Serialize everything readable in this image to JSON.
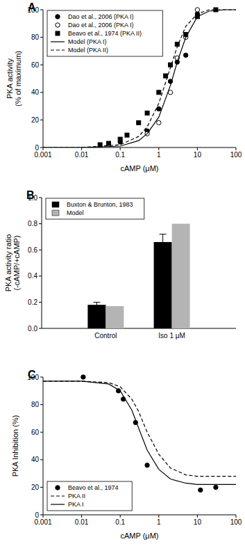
{
  "chart_data": [
    {
      "type": "line",
      "title": "A",
      "log": "x",
      "x_label": "cAMP (μM)",
      "y_label": [
        "PKA activity",
        "(% of maximum)"
      ],
      "xlim": [
        0.001,
        100
      ],
      "xticks": [
        0.001,
        0.01,
        0.1,
        1,
        10,
        100
      ],
      "ylim": [
        0,
        100
      ],
      "yticks": [
        0,
        20,
        40,
        60,
        80,
        100
      ],
      "legend": "upper left",
      "series": [
        {
          "name": "Dao et al., 2006 (PKA I)",
          "type": "scatter",
          "marker": "circle",
          "color": "#000000",
          "x": [
            0.1,
            0.5,
            1,
            2,
            3,
            5,
            10
          ],
          "values": [
            4,
            12,
            28,
            48,
            62,
            67,
            97
          ]
        },
        {
          "name": "Dao et al., 2006 (PKA I)",
          "type": "scatter",
          "marker": "open-circle",
          "color": "#000000",
          "x": [
            0.5,
            1,
            2,
            3,
            5,
            10
          ],
          "values": [
            10,
            18,
            40,
            65,
            80,
            100
          ]
        },
        {
          "name": "Beavo et al., 1974 (PKA II)",
          "type": "scatter",
          "marker": "square",
          "color": "#000000",
          "x": [
            0.03,
            0.05,
            0.1,
            0.15,
            0.3,
            0.5,
            1,
            1.5,
            2,
            3,
            5,
            10,
            30
          ],
          "values": [
            2,
            3,
            6,
            9,
            18,
            25,
            40,
            52,
            60,
            75,
            82,
            95,
            100
          ]
        },
        {
          "name": "Model (PKA I)",
          "type": "line",
          "line_style": "solid",
          "color": "#000000",
          "x": [
            0.001,
            0.01,
            0.1,
            0.3,
            0.5,
            1,
            2,
            3,
            5,
            10,
            20,
            50,
            100
          ],
          "values": [
            0,
            0,
            1,
            5,
            10,
            22,
            45,
            62,
            80,
            95,
            99,
            100,
            100
          ]
        },
        {
          "name": "Model (PKA II)",
          "type": "line",
          "line_style": "dashed",
          "color": "#000000",
          "x": [
            0.001,
            0.01,
            0.1,
            0.3,
            0.5,
            1,
            2,
            3,
            5,
            10,
            20,
            50,
            100
          ],
          "values": [
            0,
            0,
            2,
            8,
            15,
            32,
            58,
            73,
            88,
            97,
            100,
            100,
            100
          ]
        }
      ]
    },
    {
      "type": "bar",
      "title": "B",
      "y_label": [
        "PKA activity ratio",
        "(-cAMP/+cAMP)"
      ],
      "categories": [
        "Control",
        "Iso 1 μM"
      ],
      "ylim": [
        0,
        1
      ],
      "yticks": [
        {
          "value": 0,
          "label": "0.0"
        },
        0.2,
        0.4,
        0.6,
        0.8,
        {
          "value": 1,
          "label": "1.0"
        }
      ],
      "legend": "upper left",
      "series": [
        {
          "name": "Buxton & Brunton, 1983",
          "color": "#000000",
          "values": [
            0.18,
            0.66
          ],
          "errors": [
            0.02,
            0.06
          ]
        },
        {
          "name": "Model",
          "color": "#b4b4b4",
          "values": [
            0.17,
            0.8
          ]
        }
      ]
    },
    {
      "type": "line",
      "title": "C",
      "log": "x",
      "x_label": "cAMP (μM)",
      "y_label": [
        "PKA Inhibition (%)"
      ],
      "xlim": [
        0.001,
        100
      ],
      "xticks": [
        0.001,
        0.01,
        0.1,
        1,
        10,
        100
      ],
      "ylim": [
        0,
        100
      ],
      "yticks": [
        0,
        20,
        40,
        60,
        80,
        100
      ],
      "legend": "lower left",
      "series": [
        {
          "name": "Beavo et al., 1974",
          "type": "scatter",
          "marker": "circle",
          "color": "#000000",
          "x": [
            0.011,
            0.09,
            0.12,
            0.25,
            0.5,
            12,
            30
          ],
          "values": [
            100,
            90,
            84,
            67,
            36,
            18,
            20
          ]
        },
        {
          "name": "PKA II",
          "type": "line",
          "line_style": "dashed",
          "color": "#000000",
          "x": [
            0.001,
            0.01,
            0.05,
            0.1,
            0.2,
            0.3,
            0.5,
            1,
            2,
            5,
            10,
            100
          ],
          "values": [
            97,
            97,
            96,
            93,
            84,
            75,
            60,
            44,
            34,
            29,
            28,
            28
          ]
        },
        {
          "name": "PKA I",
          "type": "line",
          "line_style": "solid",
          "color": "#000000",
          "x": [
            0.001,
            0.01,
            0.05,
            0.1,
            0.2,
            0.3,
            0.5,
            1,
            2,
            5,
            10,
            100
          ],
          "values": [
            97,
            97,
            95,
            90,
            76,
            63,
            47,
            33,
            26,
            23,
            22,
            22
          ]
        }
      ]
    }
  ]
}
